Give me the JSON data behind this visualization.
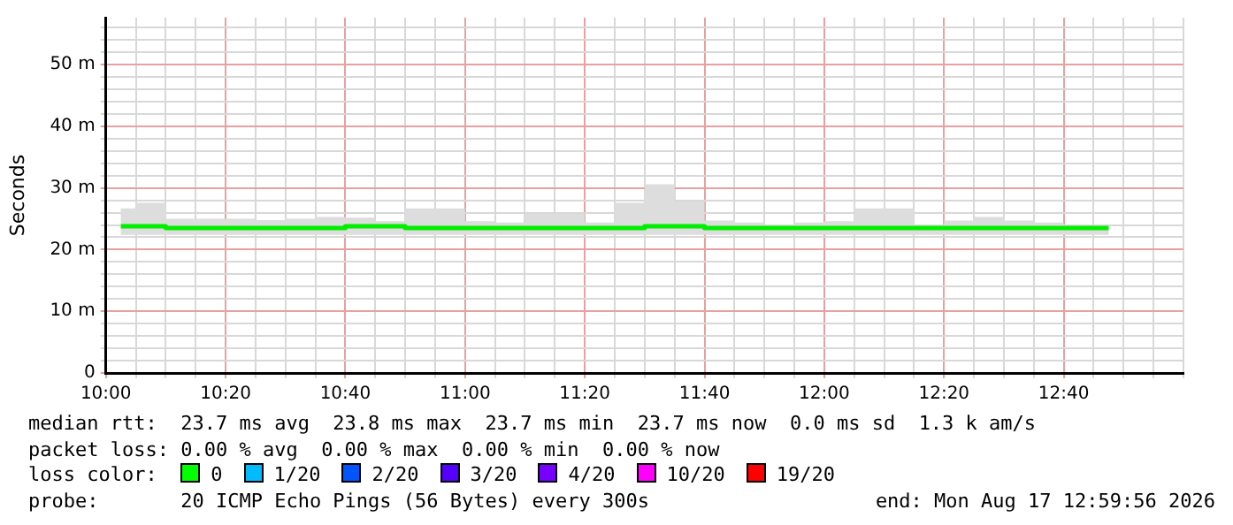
{
  "chart_data": {
    "type": "step",
    "ylabel": "Seconds",
    "x": [
      10.0417,
      10.125,
      10.2083,
      10.2917,
      10.375,
      10.4583,
      10.5417,
      10.625,
      10.7083,
      10.7917,
      10.875,
      10.9583,
      11.0417,
      11.125,
      11.2083,
      11.2917,
      11.375,
      11.4583,
      11.5417,
      11.625,
      11.7083,
      11.7917,
      11.875,
      11.9583,
      12.0417,
      12.125,
      12.2083,
      12.2917,
      12.375,
      12.4583,
      12.5417,
      12.625,
      12.7083,
      12.7917
    ],
    "series": [
      {
        "color": "#00ee00",
        "values": [
          23.8,
          23.8,
          23.5,
          23.5,
          23.5,
          23.5,
          23.5,
          23.5,
          23.8,
          23.8,
          23.5,
          23.5,
          23.5,
          23.5,
          23.5,
          23.5,
          23.5,
          23.5,
          23.8,
          23.8,
          23.5,
          23.5,
          23.5,
          23.5,
          23.5,
          23.5,
          23.5,
          23.5,
          23.5,
          23.5,
          23.5,
          23.5,
          23.5,
          23.5
        ],
        "lower": [
          22.4,
          22.4,
          22.4,
          22.4,
          22.4,
          22.4,
          22.4,
          22.4,
          22.4,
          22.4,
          22.4,
          22.4,
          22.4,
          22.4,
          22.4,
          22.4,
          22.4,
          22.4,
          22.4,
          22.4,
          22.4,
          22.4,
          22.4,
          22.4,
          22.4,
          22.4,
          22.4,
          22.4,
          22.4,
          22.4,
          22.4,
          22.4,
          22.4,
          22.4
        ],
        "upper": [
          26.7,
          27.6,
          25.0,
          25.0,
          25.0,
          24.8,
          25.0,
          25.3,
          25.2,
          24.6,
          26.7,
          26.7,
          24.6,
          24.4,
          25.8,
          25.8,
          24.4,
          27.6,
          30.6,
          27.8,
          24.7,
          24.4,
          24.0,
          24.4,
          24.6,
          26.7,
          26.7,
          24.0,
          24.7,
          25.3,
          24.7,
          24.4,
          24.0,
          24.1
        ]
      }
    ],
    "xlim": [
      10,
      13
    ],
    "xticks": [
      {
        "value": 10,
        "label": "10:00"
      },
      {
        "value": 10.0833,
        "label": null
      },
      {
        "value": 10.1667,
        "label": null
      },
      {
        "value": 10.25,
        "label": null
      },
      {
        "value": 10.3333,
        "label": "10:20"
      },
      {
        "value": 10.4167,
        "label": null
      },
      {
        "value": 10.5,
        "label": null
      },
      {
        "value": 10.5833,
        "label": null
      },
      {
        "value": 10.6667,
        "label": "10:40"
      },
      {
        "value": 10.75,
        "label": null
      },
      {
        "value": 10.8333,
        "label": null
      },
      {
        "value": 10.9167,
        "label": null
      },
      {
        "value": 11,
        "label": "11:00"
      },
      {
        "value": 11.0833,
        "label": null
      },
      {
        "value": 11.1667,
        "label": null
      },
      {
        "value": 11.25,
        "label": null
      },
      {
        "value": 11.3333,
        "label": "11:20"
      },
      {
        "value": 11.4167,
        "label": null
      },
      {
        "value": 11.5,
        "label": null
      },
      {
        "value": 11.5833,
        "label": null
      },
      {
        "value": 11.6667,
        "label": "11:40"
      },
      {
        "value": 11.75,
        "label": null
      },
      {
        "value": 11.8333,
        "label": null
      },
      {
        "value": 11.9167,
        "label": null
      },
      {
        "value": 12,
        "label": "12:00"
      },
      {
        "value": 12.0833,
        "label": null
      },
      {
        "value": 12.1667,
        "label": null
      },
      {
        "value": 12.25,
        "label": null
      },
      {
        "value": 12.3333,
        "label": "12:20"
      },
      {
        "value": 12.4167,
        "label": null
      },
      {
        "value": 12.5,
        "label": null
      },
      {
        "value": 12.5833,
        "label": null
      },
      {
        "value": 12.6667,
        "label": "12:40"
      },
      {
        "value": 12.75,
        "label": null
      },
      {
        "value": 12.8333,
        "label": null
      },
      {
        "value": 12.9167,
        "label": null
      },
      {
        "value": 13,
        "label": null
      }
    ],
    "ylim": [
      0,
      57.6
    ],
    "yticks": [
      {
        "value": 0,
        "label": "0"
      },
      {
        "value": 2,
        "label": null
      },
      {
        "value": 4,
        "label": null
      },
      {
        "value": 6,
        "label": null
      },
      {
        "value": 8,
        "label": null
      },
      {
        "value": 10,
        "label": "10 m"
      },
      {
        "value": 12,
        "label": null
      },
      {
        "value": 14,
        "label": null
      },
      {
        "value": 16,
        "label": null
      },
      {
        "value": 18,
        "label": null
      },
      {
        "value": 20,
        "label": "20 m"
      },
      {
        "value": 22,
        "label": null
      },
      {
        "value": 24,
        "label": null
      },
      {
        "value": 26,
        "label": null
      },
      {
        "value": 28,
        "label": null
      },
      {
        "value": 30,
        "label": "30 m"
      },
      {
        "value": 32,
        "label": null
      },
      {
        "value": 34,
        "label": null
      },
      {
        "value": 36,
        "label": null
      },
      {
        "value": 38,
        "label": null
      },
      {
        "value": 40,
        "label": "40 m"
      },
      {
        "value": 42,
        "label": null
      },
      {
        "value": 44,
        "label": null
      },
      {
        "value": 46,
        "label": null
      },
      {
        "value": 48,
        "label": null
      },
      {
        "value": 50,
        "label": "50 m"
      },
      {
        "value": 52,
        "label": null
      },
      {
        "value": 54,
        "label": null
      },
      {
        "value": 56,
        "label": null
      }
    ],
    "grid": true,
    "annotations": [
      "median rtt:  23.7 ms avg  23.8 ms max  23.7 ms min  23.7 ms now  0.0 ms sd  1.3 k am/s",
      "packet loss: 0.00 % avg  0.00 % max  0.00 % min  0.00 % now",
      "loss color:",
      "0",
      "1/20",
      "2/20",
      "3/20",
      "4/20",
      "10/20",
      "19/20",
      "probe:       20 ICMP Echo Pings (56 Bytes) every 300s",
      "end: Mon Aug 17 12:59:56 2026"
    ]
  }
}
